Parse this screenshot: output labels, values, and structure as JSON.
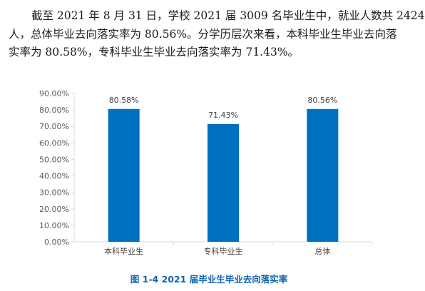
{
  "paragraph": {
    "lines": [
      "截至 2021 年 8 月 31 日，学校 2021 届 3009 名毕业生中，就业人数共 2424",
      "人，总体毕业去向落实率为 80.56%。分学历层次来看，本科毕业生毕业去向落",
      "实率为 80.58%，专科毕业生毕业去向落实率为 71.43%。"
    ]
  },
  "caption": "图 1-4 2021 届毕业生毕业去向落实率",
  "colors": {
    "bar": "#0070c0",
    "caption": "#0b64b0",
    "axis": "#d9d9d9"
  },
  "chart_data": {
    "type": "bar",
    "categories": [
      "本科毕业生",
      "专科毕业生",
      "总体"
    ],
    "values": [
      80.58,
      71.43,
      80.56
    ],
    "value_labels": [
      "80.58%",
      "71.43%",
      "80.56%"
    ],
    "ylim": [
      0,
      90
    ],
    "yticks": [
      0,
      10,
      20,
      30,
      40,
      50,
      60,
      70,
      80,
      90
    ],
    "ytick_labels": [
      "0.00%",
      "10.00%",
      "20.00%",
      "30.00%",
      "40.00%",
      "50.00%",
      "60.00%",
      "70.00%",
      "80.00%",
      "90.00%"
    ],
    "title": "图 1-4 2021 届毕业生毕业去向落实率",
    "xlabel": "",
    "ylabel": "",
    "grid": false,
    "legend": "none"
  }
}
